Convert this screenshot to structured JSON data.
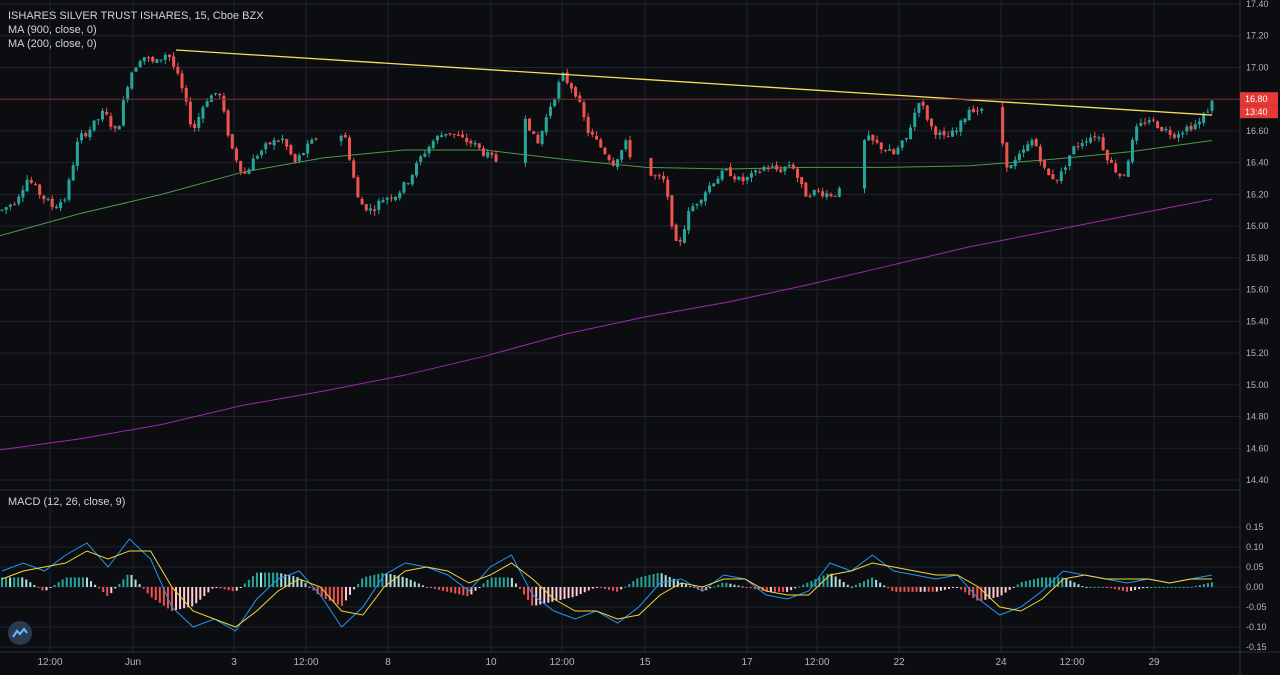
{
  "legend": {
    "symbol": "ISHARES SILVER TRUST ISHARES, 15, Cboe BZX",
    "ma900": "MA (900, close, 0)",
    "ma200": "MA (200, close, 0)",
    "macd": "MACD (12, 26, close, 9)"
  },
  "colors": {
    "background": "#0c0d11",
    "grid": "#1f2230",
    "up": "#26a69a",
    "down": "#ef5350",
    "ma900": "#9c27b0",
    "ma200": "#4c9a4c",
    "trendline": "#f6e15a",
    "macd_line": "#2196f3",
    "signal_line": "#f6d53a",
    "price_tag": "#e53935"
  },
  "price_tags": {
    "last": "16.80",
    "countdown": "13:40"
  },
  "chart_data": [
    {
      "type": "candlestick",
      "title": "ISHARES SILVER TRUST ISHARES, 15, Cboe BZX",
      "ylim": [
        14.4,
        17.4
      ],
      "y_ticks": [
        "17.40",
        "17.20",
        "17.00",
        "16.80",
        "16.60",
        "16.40",
        "16.20",
        "16.00",
        "15.80",
        "15.60",
        "15.40",
        "15.20",
        "15.00",
        "14.80",
        "14.60",
        "14.40"
      ],
      "x_ticks": [
        "12:00",
        "Jun",
        "3",
        "12:00",
        "8",
        "10",
        "12:00",
        "15",
        "17",
        "12:00",
        "22",
        "24",
        "12:00",
        "29"
      ],
      "last_price": 16.8,
      "horizontal_line": 16.8,
      "trendline": {
        "start": 17.11,
        "end": 16.7
      },
      "price_path": [
        16.1,
        16.16,
        16.3,
        16.2,
        16.12,
        16.18,
        16.55,
        16.62,
        16.72,
        16.58,
        16.95,
        17.08,
        17.02,
        17.1,
        16.9,
        16.6,
        16.8,
        16.85,
        16.5,
        16.32,
        16.45,
        16.52,
        16.55,
        16.4,
        16.5,
        16.58,
        16.62,
        16.55,
        16.15,
        16.1,
        16.18,
        16.2,
        16.3,
        16.45,
        16.55,
        16.6,
        16.55,
        16.52,
        16.45,
        16.4,
        16.55,
        16.72,
        16.5,
        16.75,
        16.95,
        16.85,
        16.6,
        16.5,
        16.4,
        16.52,
        16.3,
        16.32,
        16.28,
        15.85,
        16.1,
        16.2,
        16.3,
        16.35,
        16.28,
        16.32,
        16.38,
        16.35,
        16.4,
        16.2,
        16.22,
        16.2,
        16.22,
        16.48,
        16.55,
        16.5,
        16.45,
        16.55,
        16.8,
        16.62,
        16.55,
        16.6,
        16.75,
        16.72,
        16.75,
        16.35,
        16.45,
        16.55,
        16.32,
        16.3,
        16.48,
        16.55,
        16.58,
        16.4,
        16.3,
        16.6,
        16.68,
        16.62,
        16.58,
        16.62,
        16.65,
        16.78
      ],
      "series": [
        {
          "name": "MA (900, close, 0)",
          "values": [
            14.59,
            14.66,
            14.75,
            14.87,
            14.96,
            15.06,
            15.18,
            15.32,
            15.43,
            15.52,
            15.63,
            15.75,
            15.87,
            15.97,
            16.07,
            16.17
          ]
        },
        {
          "name": "MA (200, close, 0)",
          "values": [
            15.94,
            16.08,
            16.2,
            16.34,
            16.43,
            16.48,
            16.48,
            16.42,
            16.37,
            16.36,
            16.37,
            16.37,
            16.38,
            16.42,
            16.47,
            16.54
          ]
        }
      ]
    },
    {
      "type": "bar",
      "title": "MACD (12, 26, close, 9)",
      "ylim": [
        -0.15,
        0.15
      ],
      "y_ticks": [
        "0.15",
        "0.10",
        "0.05",
        "0.00",
        "-0.05",
        "-0.10",
        "-0.15"
      ],
      "series": [
        {
          "name": "MACD",
          "values": [
            0.04,
            0.06,
            0.04,
            0.08,
            0.11,
            0.05,
            0.12,
            0.07,
            -0.05,
            -0.1,
            -0.08,
            -0.11,
            -0.03,
            0.02,
            0.04,
            -0.02,
            -0.1,
            -0.05,
            0.03,
            0.06,
            0.05,
            0.03,
            -0.01,
            0.05,
            0.08,
            -0.02,
            -0.06,
            -0.08,
            -0.06,
            -0.09,
            -0.05,
            0.01,
            0.02,
            -0.01,
            0.03,
            0.02,
            -0.02,
            -0.03,
            -0.01,
            0.06,
            0.04,
            0.08,
            0.04,
            0.03,
            0.02,
            0.03,
            -0.03,
            -0.07,
            -0.05,
            -0.01,
            0.04,
            0.03,
            0.02,
            0.01,
            0.02,
            0.01,
            0.02,
            0.03
          ]
        },
        {
          "name": "Signal",
          "values": [
            0.02,
            0.04,
            0.05,
            0.06,
            0.09,
            0.07,
            0.09,
            0.09,
            0.0,
            -0.06,
            -0.08,
            -0.1,
            -0.06,
            -0.01,
            0.02,
            0.0,
            -0.06,
            -0.07,
            0.0,
            0.04,
            0.05,
            0.04,
            0.01,
            0.03,
            0.06,
            0.02,
            -0.03,
            -0.06,
            -0.06,
            -0.08,
            -0.07,
            -0.02,
            0.01,
            0.0,
            0.02,
            0.02,
            -0.01,
            -0.02,
            -0.02,
            0.03,
            0.04,
            0.06,
            0.05,
            0.04,
            0.03,
            0.03,
            0.0,
            -0.05,
            -0.06,
            -0.03,
            0.02,
            0.03,
            0.02,
            0.02,
            0.02,
            0.01,
            0.02,
            0.02
          ]
        }
      ]
    }
  ]
}
